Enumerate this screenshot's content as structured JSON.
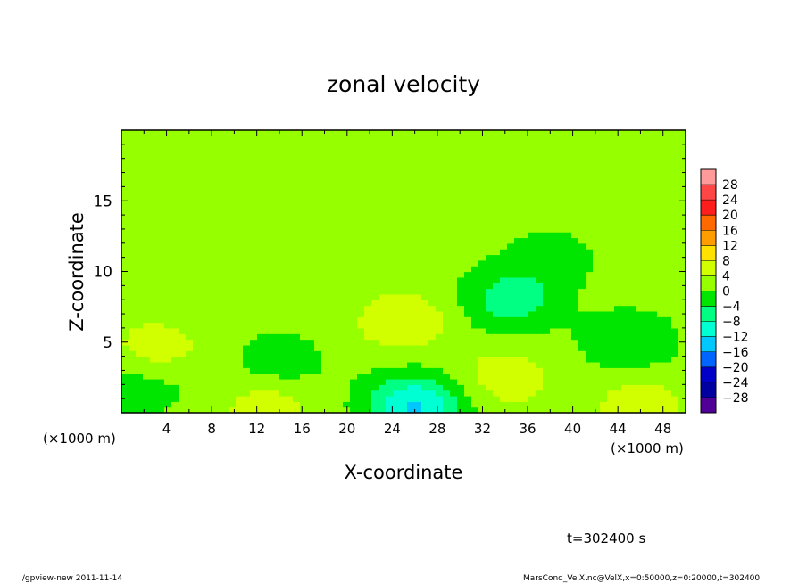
{
  "chart_data": {
    "type": "heatmap",
    "title": "zonal velocity",
    "xlabel": "X-coordinate",
    "ylabel": "Z-coordinate",
    "x_unit_left": "(×1000 m)",
    "x_unit_right": "(×1000 m)",
    "xlim": [
      0,
      50
    ],
    "ylim": [
      0,
      20
    ],
    "x_ticks": [
      4,
      8,
      12,
      16,
      20,
      24,
      28,
      32,
      36,
      40,
      44,
      48
    ],
    "y_ticks": [
      5,
      10,
      15
    ],
    "colorbar": {
      "levels": [
        28,
        24,
        20,
        16,
        12,
        8,
        4,
        0,
        -4,
        -8,
        -12,
        -16,
        -20,
        -24,
        -28
      ],
      "level_labels": [
        "28",
        "24",
        "20",
        "16",
        "12",
        "8",
        "4",
        "0",
        "−4",
        "−8",
        "−12",
        "−16",
        "−20",
        "−24",
        "−28"
      ],
      "colors": [
        "#ff9a9a",
        "#ff4646",
        "#ff1e1e",
        "#ff6a00",
        "#ff9d00",
        "#ffe100",
        "#d2ff00",
        "#96ff00",
        "#00e600",
        "#00ff82",
        "#00ffd2",
        "#00c8ff",
        "#0064ff",
        "#0000c8",
        "#0000a0",
        "#500096"
      ]
    },
    "field": {
      "background": 1.5,
      "features": [
        {
          "x": 34.5,
          "z": 8,
          "value": -8
        },
        {
          "x": 26,
          "z": 0.5,
          "value": -14
        },
        {
          "x": 25,
          "z": 6.5,
          "value": 6
        },
        {
          "x": 13,
          "z": 0.5,
          "value": 5
        },
        {
          "x": 46,
          "z": 0.5,
          "value": 5
        },
        {
          "x": 34,
          "z": 2.5,
          "value": 5
        },
        {
          "x": 14,
          "z": 3.5,
          "value": -4
        },
        {
          "x": 45,
          "z": 5,
          "value": -5
        },
        {
          "x": 3,
          "z": 4.5,
          "value": 5
        },
        {
          "x": 2,
          "z": 2,
          "value": -4
        },
        {
          "x": 38,
          "z": 11,
          "value": -3
        }
      ]
    }
  },
  "footer": {
    "timestamp": "t=302400 s",
    "program": "./gpview-new  2011-11-14",
    "source": "MarsCond_VelX.nc@VelX,x=0:50000,z=0:20000,t=302400"
  }
}
